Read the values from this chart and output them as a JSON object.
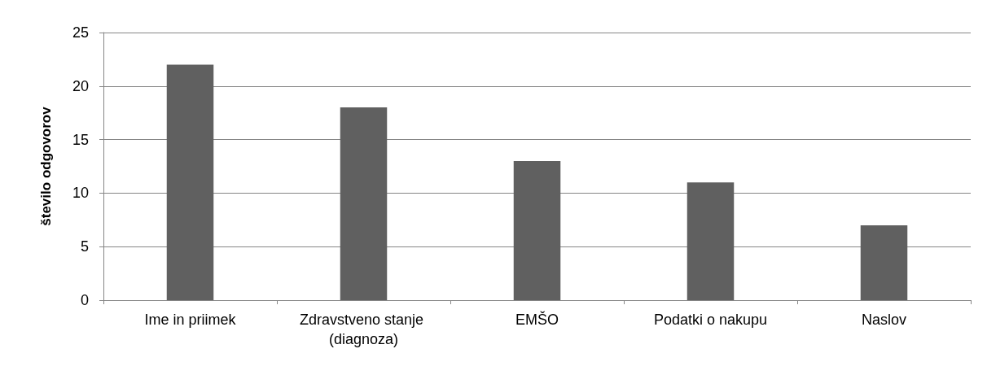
{
  "chart_data": {
    "type": "bar",
    "ylabel": "število odgovorov",
    "categories": [
      "Ime in priimek",
      "Zdravstveno stanje (diagnoza)",
      "EMŠO",
      "Podatki o nakupu",
      "Naslov"
    ],
    "values": [
      22,
      18,
      13,
      11,
      7
    ],
    "color": "#606060",
    "ylim": [
      0,
      25
    ],
    "yticks": [
      0,
      5,
      10,
      15,
      20,
      25
    ],
    "grid": "y"
  }
}
